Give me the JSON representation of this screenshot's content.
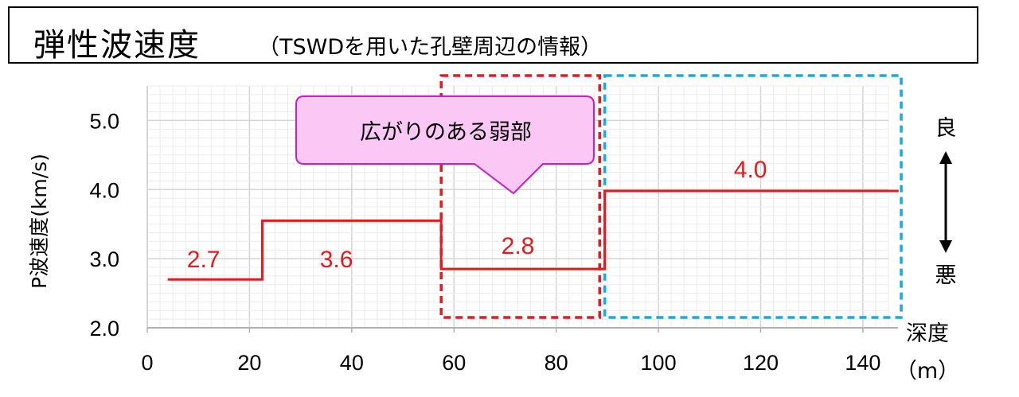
{
  "header": {
    "title_main": "弾性波速度",
    "title_sub": "（TSWDを用いた孔壁周辺の情報）"
  },
  "callout": {
    "text": "広がりのある弱部"
  },
  "indicators": {
    "good": "良",
    "bad": "悪"
  },
  "colors": {
    "series": "#e8191b",
    "weak_zone_box": "#e8191b",
    "good_zone_box": "#1aa8e0",
    "callout_fill": "#fbc8f5",
    "callout_border": "#c81fc0"
  },
  "chart_data": {
    "type": "line",
    "ylabel": "P波速度(km/s)",
    "xlabel": "深度",
    "xunit": "（m）",
    "xlim": [
      0,
      145
    ],
    "ylim": [
      2.0,
      5.5
    ],
    "xticks": [
      "0",
      "20",
      "40",
      "60",
      "80",
      "100",
      "120",
      "140"
    ],
    "yticks": [
      "2.0",
      "3.0",
      "4.0",
      "5.0"
    ],
    "grid": true,
    "series": [
      {
        "x": [
          4,
          22.5,
          22.5,
          57.5,
          57.5,
          88.5,
          88.5,
          89.5,
          89.5,
          147
        ],
        "y": [
          2.7,
          2.7,
          3.55,
          3.55,
          2.85,
          2.85,
          2.85,
          2.85,
          3.98,
          3.98
        ]
      }
    ],
    "data_labels": [
      {
        "text": "2.7",
        "x": 11,
        "y": 3.0
      },
      {
        "text": "3.6",
        "x": 37,
        "y": 3.0
      },
      {
        "text": "2.8",
        "x": 72.5,
        "y": 3.2
      },
      {
        "text": "4.0",
        "x": 118,
        "y": 4.3
      }
    ],
    "regions": [
      {
        "name": "weak_zone",
        "x": [
          57.5,
          88.5
        ],
        "y": [
          2.15,
          5.65
        ]
      },
      {
        "name": "good_zone",
        "x": [
          89.5,
          147.5
        ],
        "y": [
          2.15,
          5.65
        ]
      }
    ]
  }
}
